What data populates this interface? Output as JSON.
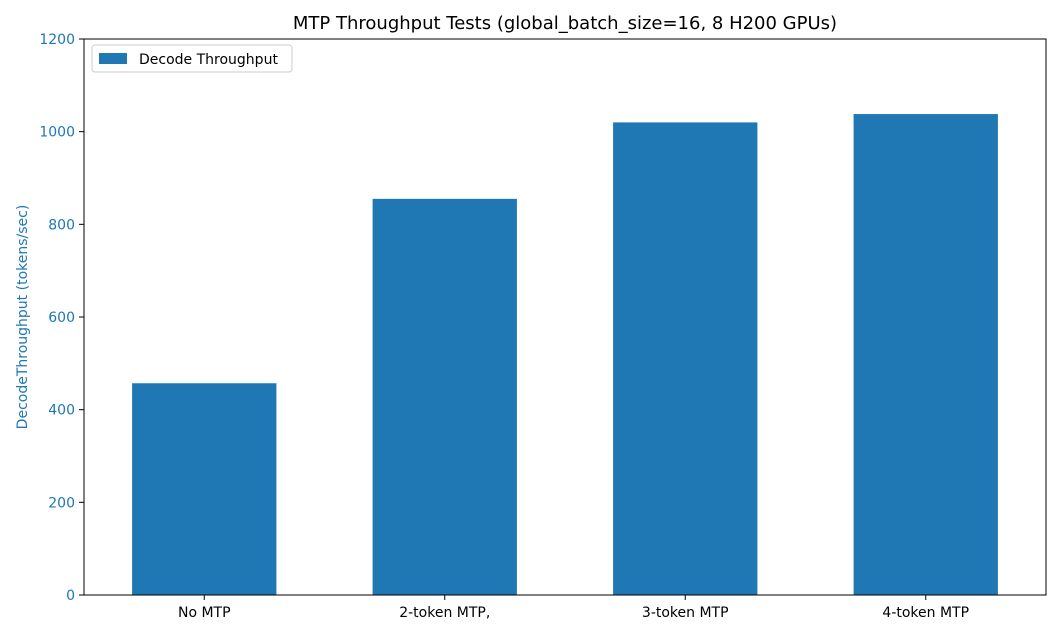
{
  "chart_data": {
    "type": "bar",
    "title": "MTP Throughput Tests (global_batch_size=16, 8 H200 GPUs)",
    "xlabel": "",
    "ylabel": "DecodeThroughput (tokens/sec)",
    "categories": [
      "No MTP",
      "2-token MTP,",
      "3-token MTP",
      "4-token MTP"
    ],
    "series": [
      {
        "name": "Decode Throughput",
        "values": [
          457,
          855,
          1020,
          1038
        ],
        "color": "#1f77b4"
      }
    ],
    "ylim": [
      0,
      1200
    ],
    "yticks": [
      0,
      200,
      400,
      600,
      800,
      1000,
      1200
    ],
    "ytick_labels": [
      "0",
      "200",
      "400",
      "600",
      "800",
      "1000",
      "1200"
    ],
    "grid": false,
    "legend": "top-left",
    "colors": {
      "axis_label": "#1f77b4",
      "ytick_label": "#1f77b4",
      "axes": "#000000"
    }
  }
}
